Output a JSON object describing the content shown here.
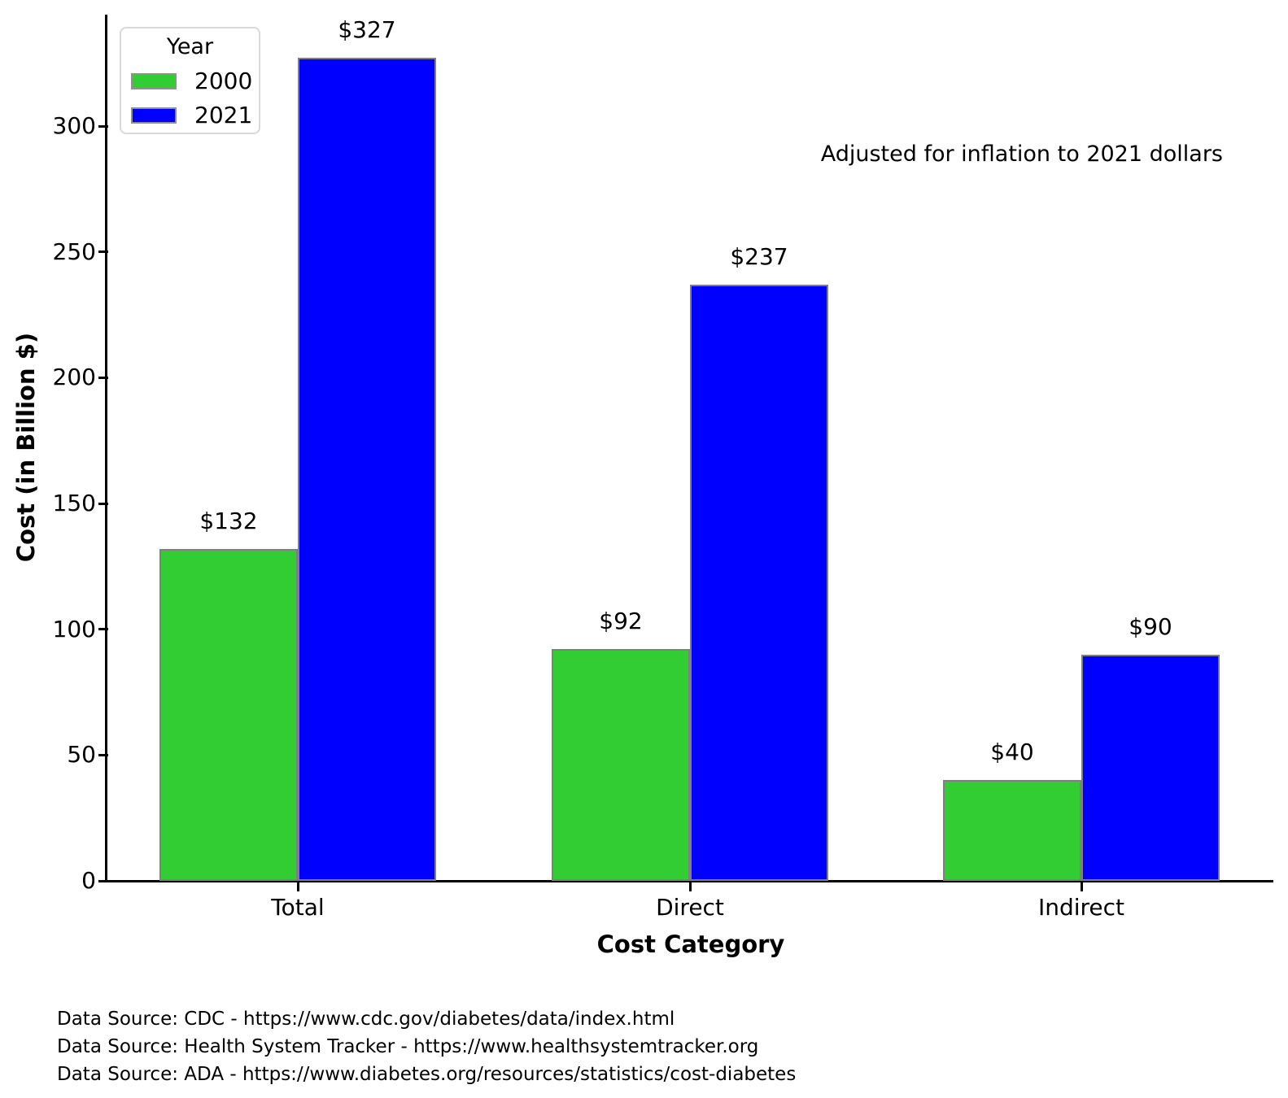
{
  "chart_data": {
    "type": "bar",
    "categories": [
      "Total",
      "Direct",
      "Indirect"
    ],
    "series": [
      {
        "name": "2000",
        "color": "#32CD32",
        "values": [
          132,
          92,
          40
        ],
        "data_labels": [
          "$132",
          "$92",
          "$40"
        ]
      },
      {
        "name": "2021",
        "color": "#0000FF",
        "values": [
          327,
          237,
          90
        ],
        "data_labels": [
          "$327",
          "$237",
          "$90"
        ]
      }
    ],
    "xlabel": "Cost Category",
    "ylabel": "Cost (in Billion $)",
    "yticks": [
      0,
      50,
      100,
      150,
      200,
      250,
      300
    ],
    "ylim": [
      0,
      344
    ],
    "grid": false,
    "bar_edge_color": "#7f7f7f",
    "legend": {
      "title": "Year",
      "position": "upper left"
    },
    "annotation": "Adjusted for inflation to 2021 dollars"
  },
  "footer": {
    "lines": [
      "Data Source: CDC - https://www.cdc.gov/diabetes/data/index.html",
      "Data Source: Health System Tracker - https://www.healthsystemtracker.org",
      "Data Source: ADA - https://www.diabetes.org/resources/statistics/cost-diabetes"
    ]
  }
}
